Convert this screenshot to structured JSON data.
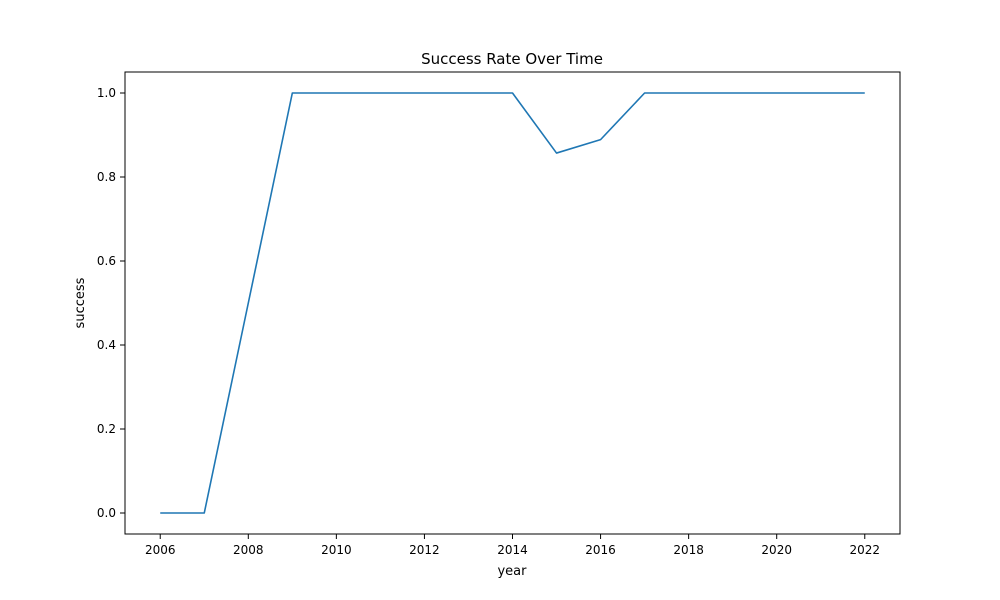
{
  "chart_data": {
    "type": "line",
    "title": "Success Rate Over Time",
    "xlabel": "year",
    "ylabel": "success",
    "xlim": [
      2005.2,
      2022.8
    ],
    "ylim": [
      -0.05,
      1.05
    ],
    "x_ticks": [
      2006,
      2008,
      2010,
      2012,
      2014,
      2016,
      2018,
      2020,
      2022
    ],
    "y_ticks": [
      0.0,
      0.2,
      0.4,
      0.6,
      0.8,
      1.0
    ],
    "x_tick_labels": [
      "2006",
      "2008",
      "2010",
      "2012",
      "2014",
      "2016",
      "2018",
      "2020",
      "2022"
    ],
    "y_tick_labels": [
      "0.0",
      "0.2",
      "0.4",
      "0.6",
      "0.8",
      "1.0"
    ],
    "grid": false,
    "legend": "none",
    "series": [
      {
        "color": "#1f77b4",
        "x": [
          2006,
          2007,
          2008,
          2009,
          2010,
          2011,
          2012,
          2013,
          2014,
          2015,
          2016,
          2017,
          2018,
          2019,
          2020,
          2021,
          2022
        ],
        "y": [
          0.0,
          0.0,
          0.5,
          1.0,
          1.0,
          1.0,
          1.0,
          1.0,
          1.0,
          0.857,
          0.889,
          1.0,
          1.0,
          1.0,
          1.0,
          1.0,
          1.0
        ]
      }
    ]
  }
}
